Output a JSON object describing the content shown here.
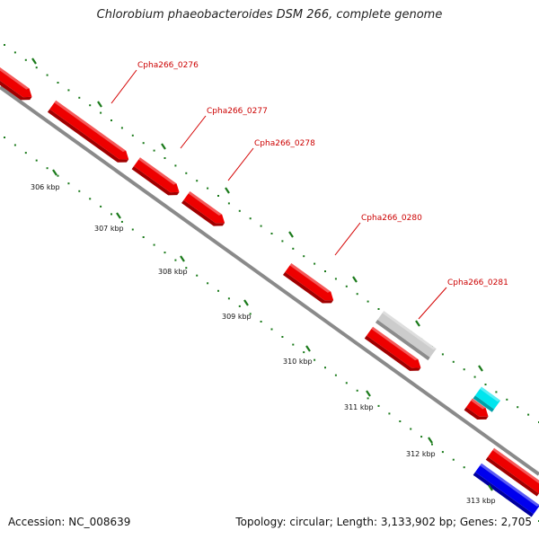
{
  "title": "Chlorobium phaeobacteroides DSM 266, complete genome",
  "footer": {
    "accession": "Accession: NC_008639",
    "summary": "Topology: circular; Length: 3,133,902 bp; Genes: 2,705"
  },
  "colors": {
    "backbone": "#8a8a8a",
    "tick": "#1a7a1a",
    "label_line": "#d40000",
    "label_text": "#cc0000"
  },
  "ticks": [
    {
      "label": "306 kbp"
    },
    {
      "label": "307 kbp"
    },
    {
      "label": "308 kbp"
    },
    {
      "label": "309 kbp"
    },
    {
      "label": "310 kbp"
    },
    {
      "label": "311 kbp"
    },
    {
      "label": "312 kbp"
    },
    {
      "label": "313 kbp"
    }
  ],
  "gene_labels": [
    {
      "text": "Cpha266_0276"
    },
    {
      "text": "Cpha266_0277"
    },
    {
      "text": "Cpha266_0278"
    },
    {
      "text": "Cpha266_0280"
    },
    {
      "text": "Cpha266_0281"
    }
  ],
  "features": [
    {
      "color": "#ee0000",
      "shade": "#a00000"
    },
    {
      "color": "#ee0000",
      "shade": "#a00000"
    },
    {
      "color": "#ee0000",
      "shade": "#a00000"
    },
    {
      "color": "#ee0000",
      "shade": "#a00000"
    },
    {
      "color": "#ee0000",
      "shade": "#a00000"
    },
    {
      "color": "#ee0000",
      "shade": "#a00000"
    },
    {
      "color": "#cccccc",
      "shade": "#8c8c8c"
    },
    {
      "color": "#ee0000",
      "shade": "#a00000"
    },
    {
      "color": "#00e5ee",
      "shade": "#00a0a8"
    },
    {
      "color": "#ee0000",
      "shade": "#a00000"
    },
    {
      "color": "#0000ee",
      "shade": "#0000a0"
    },
    {
      "color": "#777777",
      "shade": "#444444"
    }
  ]
}
